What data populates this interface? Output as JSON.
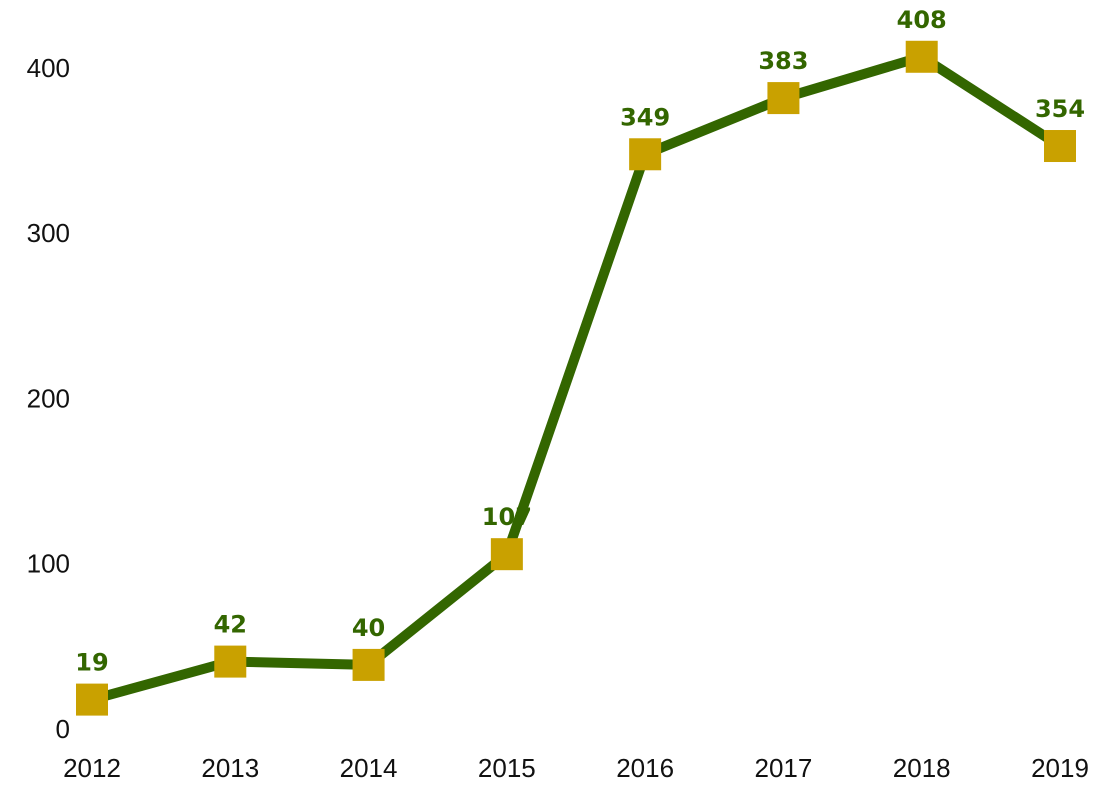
{
  "chart_data": {
    "type": "line",
    "categories": [
      "2012",
      "2013",
      "2014",
      "2015",
      "2016",
      "2017",
      "2018",
      "2019"
    ],
    "series": [
      {
        "name": null,
        "color": "#336600",
        "marker_color": "#c9a100",
        "values": [
          19,
          42,
          40,
          107,
          349,
          383,
          408,
          354
        ]
      }
    ],
    "ylim": [
      0,
      400
    ],
    "yticks": [
      0,
      100,
      200,
      300,
      400
    ],
    "grid": false,
    "data_labels": true
  }
}
